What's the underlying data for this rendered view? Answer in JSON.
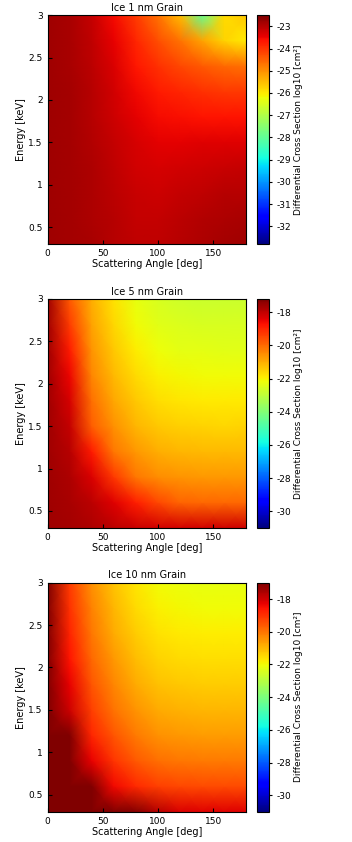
{
  "chart_data": [
    {
      "type": "heatmap",
      "title": "Ice 1 nm Grain",
      "x_label": "Scattering Angle [deg]",
      "y_label": "Energy [keV]",
      "x": [
        0,
        20,
        40,
        60,
        80,
        100,
        120,
        140,
        160,
        180
      ],
      "y": [
        0.3,
        0.6,
        0.9,
        1.2,
        1.5,
        1.8,
        2.1,
        2.4,
        2.7,
        3.0
      ],
      "cells": [
        [
          -22.8,
          -22.83,
          -22.9,
          -23.0,
          -23.1,
          -23.1,
          -23.02,
          -22.92,
          -22.85,
          -22.82
        ],
        [
          -22.8,
          -22.83,
          -22.91,
          -23.02,
          -23.12,
          -23.14,
          -23.06,
          -22.97,
          -22.91,
          -22.88
        ],
        [
          -22.8,
          -22.84,
          -22.92,
          -23.04,
          -23.17,
          -23.2,
          -23.14,
          -23.07,
          -23.01,
          -22.99
        ],
        [
          -22.8,
          -22.84,
          -22.94,
          -23.08,
          -23.23,
          -23.28,
          -23.25,
          -23.2,
          -23.16,
          -23.14
        ],
        [
          -22.8,
          -22.84,
          -22.96,
          -23.13,
          -23.3,
          -23.4,
          -23.4,
          -23.38,
          -23.36,
          -23.35
        ],
        [
          -22.8,
          -22.85,
          -22.99,
          -23.19,
          -23.41,
          -23.56,
          -23.6,
          -23.63,
          -23.64,
          -23.64
        ],
        [
          -22.8,
          -22.86,
          -23.02,
          -23.26,
          -23.53,
          -23.73,
          -23.86,
          -23.97,
          -24.03,
          -24.05
        ],
        [
          -22.8,
          -22.87,
          -23.06,
          -23.34,
          -23.67,
          -23.97,
          -24.2,
          -24.43,
          -24.59,
          -24.65
        ],
        [
          -22.8,
          -22.88,
          -23.1,
          -23.44,
          -23.86,
          -24.29,
          -24.7,
          -25.2,
          -25.73,
          -26.0
        ],
        [
          -22.8,
          -22.89,
          -23.14,
          -23.55,
          -24.09,
          -24.69,
          -25.5,
          -27.9,
          -25.83,
          -25.63
        ]
      ],
      "xlim": [
        0,
        180
      ],
      "xticks": [
        0,
        50,
        100,
        150
      ],
      "ylim": [
        0.3,
        3
      ],
      "yticks": [
        0.5,
        1,
        1.5,
        2,
        2.5,
        3
      ],
      "colorbar_label": "Differential Cross Section log10 [cm²]",
      "colorbar_range": [
        -32.8,
        -22.5
      ],
      "colorbar_ticks": [
        -32,
        -31,
        -30,
        -29,
        -28,
        -27,
        -26,
        -25,
        -24,
        -23
      ]
    },
    {
      "type": "heatmap",
      "title": "Ice 5 nm Grain",
      "x_label": "Scattering Angle [deg]",
      "y_label": "Energy [keV]",
      "x": [
        0,
        20,
        40,
        60,
        80,
        100,
        120,
        140,
        160,
        180
      ],
      "y": [
        0.3,
        0.6,
        0.9,
        1.2,
        1.5,
        1.8,
        2.1,
        2.4,
        2.7,
        3.0
      ],
      "cells": [
        [
          -17.6,
          -17.64,
          -17.76,
          -17.93,
          -18.1,
          -18.2,
          -18.2,
          -18.18,
          -18.16,
          -18.15
        ],
        [
          -17.6,
          -17.69,
          -17.94,
          -18.35,
          -18.89,
          -19.49,
          -19.92,
          -19.96,
          -19.98,
          -19.97
        ],
        [
          -17.6,
          -17.77,
          -18.28,
          -19.3,
          -20.2,
          -20.5,
          -20.63,
          -20.67,
          -20.68,
          -20.68
        ],
        [
          -17.6,
          -17.88,
          -18.85,
          -20.17,
          -20.7,
          -21.0,
          -21.13,
          -21.17,
          -21.18,
          -21.17
        ],
        [
          -17.6,
          -18.04,
          -19.8,
          -20.56,
          -21.09,
          -21.39,
          -21.51,
          -21.55,
          -21.57,
          -21.56
        ],
        [
          -17.6,
          -18.23,
          -20.11,
          -20.87,
          -21.4,
          -21.71,
          -21.83,
          -21.87,
          -21.88,
          -21.88
        ],
        [
          -17.6,
          -18.5,
          -20.39,
          -21.14,
          -21.67,
          -21.98,
          -22.1,
          -22.14,
          -22.15,
          -22.15
        ],
        [
          -17.6,
          -18.85,
          -20.62,
          -21.37,
          -21.9,
          -22.21,
          -22.33,
          -22.37,
          -22.38,
          -22.38
        ],
        [
          -17.6,
          -19.33,
          -20.82,
          -21.58,
          -22.11,
          -22.41,
          -22.53,
          -22.58,
          -22.59,
          -22.58
        ],
        [
          -17.6,
          -19.76,
          -21.0,
          -21.76,
          -22.29,
          -22.59,
          -22.72,
          -22.76,
          -22.77,
          -22.77
        ]
      ],
      "xlim": [
        0,
        180
      ],
      "xticks": [
        0,
        50,
        100,
        150
      ],
      "ylim": [
        0.3,
        3
      ],
      "yticks": [
        0.5,
        1,
        1.5,
        2,
        2.5,
        3
      ],
      "colorbar_label": "Differential Cross Section log10 [cm²]",
      "colorbar_range": [
        -31,
        -17.2
      ],
      "colorbar_ticks": [
        -30,
        -28,
        -26,
        -24,
        -22,
        -20,
        -18
      ]
    },
    {
      "type": "heatmap",
      "title": "Ice 10 nm Grain",
      "x_label": "Scattering Angle [deg]",
      "y_label": "Energy [keV]",
      "x": [
        0,
        20,
        40,
        60,
        80,
        100,
        120,
        140,
        160,
        180
      ],
      "y": [
        0.3,
        0.6,
        0.9,
        1.2,
        1.5,
        1.8,
        2.1,
        2.4,
        2.7,
        3.0
      ],
      "cells": [
        [
          -15.8,
          -15.89,
          -16.14,
          -16.55,
          -17.09,
          -17.69,
          -18.12,
          -18.16,
          -18.18,
          -18.17
        ],
        [
          -15.8,
          -16.08,
          -17.05,
          -18.37,
          -18.9,
          -19.2,
          -19.33,
          -19.37,
          -19.38,
          -19.37
        ],
        [
          -15.8,
          -16.43,
          -18.31,
          -19.07,
          -19.6,
          -19.91,
          -20.03,
          -20.07,
          -20.08,
          -20.08
        ],
        [
          -15.8,
          -17.05,
          -18.82,
          -19.57,
          -20.1,
          -20.41,
          -20.53,
          -20.57,
          -20.58,
          -20.58
        ],
        [
          -15.8,
          -17.96,
          -19.2,
          -19.96,
          -20.49,
          -20.79,
          -20.92,
          -20.96,
          -20.97,
          -20.97
        ],
        [
          -15.8,
          -18.28,
          -19.52,
          -20.28,
          -20.81,
          -21.11,
          -21.23,
          -21.27,
          -21.29,
          -21.28
        ],
        [
          -15.8,
          -18.54,
          -19.79,
          -20.55,
          -21.07,
          -21.38,
          -21.5,
          -21.54,
          -21.56,
          -21.55
        ],
        [
          -15.8,
          -18.78,
          -20.02,
          -20.78,
          -21.31,
          -21.61,
          -21.73,
          -21.78,
          -21.79,
          -21.78
        ],
        [
          -15.8,
          -18.98,
          -20.22,
          -20.98,
          -21.51,
          -21.82,
          -21.94,
          -21.98,
          -21.99,
          -21.99
        ],
        [
          -15.8,
          -19.16,
          -20.41,
          -21.17,
          -21.69,
          -22.0,
          -22.12,
          -22.16,
          -22.18,
          -22.17
        ]
      ],
      "xlim": [
        0,
        180
      ],
      "xticks": [
        0,
        50,
        100,
        150
      ],
      "ylim": [
        0.3,
        3
      ],
      "yticks": [
        0.5,
        1,
        1.5,
        2,
        2.5,
        3
      ],
      "colorbar_label": "Differential Cross Section log10 [cm²]",
      "colorbar_range": [
        -31,
        -17
      ],
      "colorbar_ticks": [
        -30,
        -28,
        -26,
        -24,
        -22,
        -20,
        -18
      ]
    }
  ]
}
